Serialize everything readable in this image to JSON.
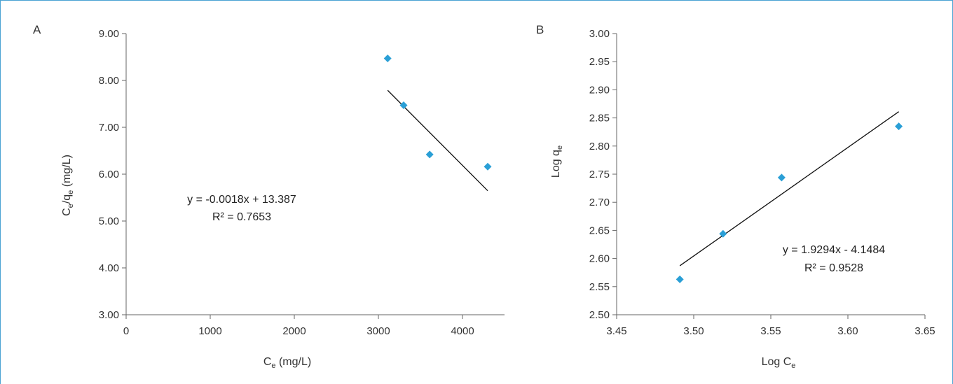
{
  "chart_data": [
    {
      "type": "scatter",
      "panel": "A",
      "ylabel": "Ce/qe (mg/L)",
      "xlabel": "Ce (mg/L)",
      "xlim": [
        0,
        4500
      ],
      "ylim": [
        3.0,
        9.0
      ],
      "xticks": [
        0,
        1000,
        2000,
        3000,
        4000
      ],
      "xtick_labels": [
        "0",
        "1000",
        "2000",
        "3000",
        "4000"
      ],
      "yticks": [
        3,
        4,
        5,
        6,
        7,
        8,
        9
      ],
      "ytick_labels": [
        "3.00",
        "4.00",
        "5.00",
        "6.00",
        "7.00",
        "8.00",
        "9.00"
      ],
      "points": [
        {
          "x": 3110,
          "y": 8.47
        },
        {
          "x": 3300,
          "y": 7.47
        },
        {
          "x": 3610,
          "y": 6.42
        },
        {
          "x": 4300,
          "y": 6.16
        }
      ],
      "trendline": {
        "slope": -0.0018,
        "intercept": 13.387,
        "x_range": [
          3110,
          4300
        ]
      },
      "equation": "y = -0.0018x + 13.387",
      "r2": "R² = 0.7653",
      "marker_color": "#2a9fd6",
      "grid": false
    },
    {
      "type": "scatter",
      "panel": "B",
      "ylabel": "Log qe",
      "xlabel": "Log Ce",
      "xlim": [
        3.45,
        3.65
      ],
      "ylim": [
        2.5,
        3.0
      ],
      "xticks": [
        3.45,
        3.5,
        3.55,
        3.6,
        3.65
      ],
      "xtick_labels": [
        "3.45",
        "3.50",
        "3.55",
        "3.60",
        "3.65"
      ],
      "yticks": [
        2.5,
        2.55,
        2.6,
        2.65,
        2.7,
        2.75,
        2.8,
        2.85,
        2.9,
        2.95,
        3.0
      ],
      "ytick_labels": [
        "2.50",
        "2.55",
        "2.60",
        "2.65",
        "2.70",
        "2.75",
        "2.80",
        "2.85",
        "2.90",
        "2.95",
        "3.00"
      ],
      "points": [
        {
          "x": 3.491,
          "y": 2.563
        },
        {
          "x": 3.519,
          "y": 2.644
        },
        {
          "x": 3.557,
          "y": 2.744
        },
        {
          "x": 3.633,
          "y": 2.835
        }
      ],
      "trendline": {
        "slope": 1.9294,
        "intercept": -4.1484,
        "x_range": [
          3.491,
          3.633
        ]
      },
      "equation": "y = 1.9294x - 4.1484",
      "r2": "R² = 0.9528",
      "marker_color": "#2a9fd6",
      "grid": false
    }
  ]
}
